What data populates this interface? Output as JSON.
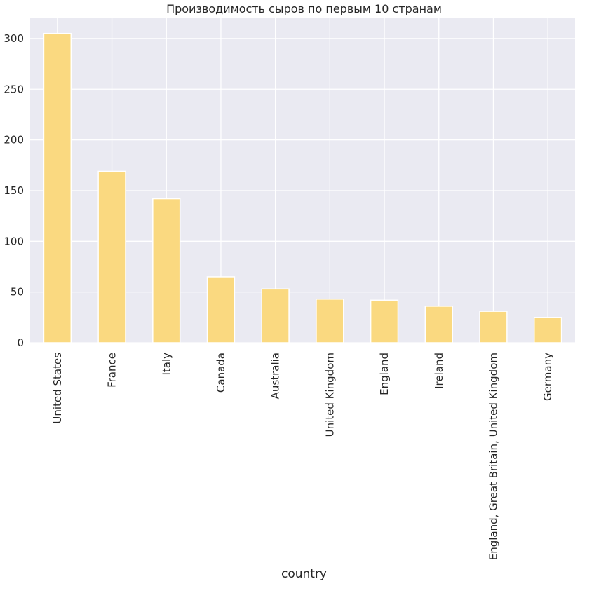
{
  "chart_data": {
    "type": "bar",
    "title": "Производимость сыров по первым 10 странам",
    "xlabel": "country",
    "ylabel": "",
    "categories": [
      "United States",
      "France",
      "Italy",
      "Canada",
      "Australia",
      "United Kingdom",
      "England",
      "Ireland",
      "England, Great Britain, United Kingdom",
      "Germany"
    ],
    "values": [
      305,
      169,
      142,
      65,
      53,
      43,
      42,
      36,
      31,
      25
    ],
    "ylim": [
      0,
      320
    ],
    "yticks": [
      0,
      50,
      100,
      150,
      200,
      250,
      300
    ],
    "grid": true,
    "legend": "none",
    "colors": {
      "bar": "#fad980",
      "bar_edge": "#ffffff",
      "plot_background": "#eaeaf2",
      "grid": "#ffffff",
      "text": "#262626"
    }
  }
}
